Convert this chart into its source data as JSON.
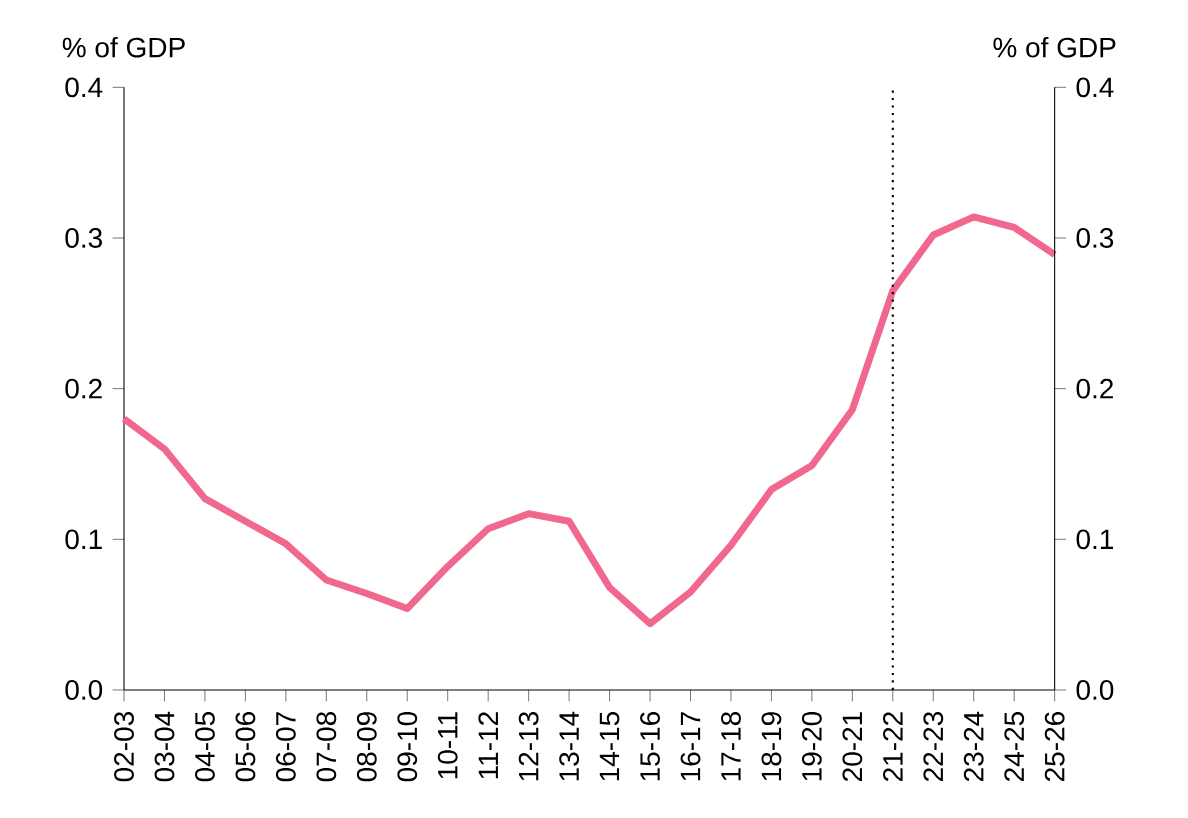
{
  "chart_data": {
    "type": "line",
    "ylabel": "% of GDP",
    "y2label": "% of GDP",
    "categories": [
      "02-03",
      "03-04",
      "04-05",
      "05-06",
      "06-07",
      "07-08",
      "08-09",
      "09-10",
      "10-11",
      "11-12",
      "12-13",
      "13-14",
      "14-15",
      "15-16",
      "16-17",
      "17-18",
      "18-19",
      "19-20",
      "20-21",
      "21-22",
      "22-23",
      "23-24",
      "24-25",
      "25-26"
    ],
    "series": [
      {
        "color": "#f0688e",
        "values": [
          0.18,
          0.16,
          0.127,
          0.112,
          0.097,
          0.073,
          0.064,
          0.054,
          0.082,
          0.107,
          0.117,
          0.112,
          0.068,
          0.044,
          0.065,
          0.096,
          0.133,
          0.149,
          0.186,
          0.265,
          0.302,
          0.314,
          0.307,
          0.289
        ]
      }
    ],
    "ylim": [
      0,
      0.4
    ],
    "yticks": [
      {
        "value": 0,
        "label": "0.0"
      },
      0.1,
      0.2,
      0.3,
      0.4
    ],
    "y2lim": [
      0,
      0.4
    ],
    "y2ticks": [
      {
        "value": 0,
        "label": "0.0"
      },
      0.1,
      0.2,
      0.3,
      0.4
    ],
    "ref_lines": [
      {
        "axis": "x",
        "value": "21-22",
        "color": "#000000",
        "line_style": "dotted"
      }
    ],
    "grid": false,
    "marker": "none",
    "line_style": "solid"
  }
}
